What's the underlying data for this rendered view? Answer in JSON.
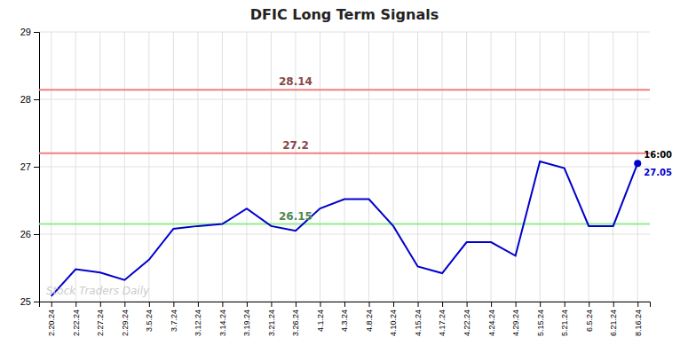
{
  "chart_data": {
    "type": "line",
    "title": "DFIC Long Term Signals",
    "categories": [
      "2.20.24",
      "2.22.24",
      "2.27.24",
      "2.29.24",
      "3.5.24",
      "3.7.24",
      "3.12.24",
      "3.14.24",
      "3.19.24",
      "3.21.24",
      "3.26.24",
      "4.1.24",
      "4.3.24",
      "4.8.24",
      "4.10.24",
      "4.15.24",
      "4.17.24",
      "4.22.24",
      "4.24.24",
      "4.29.24",
      "5.15.24",
      "5.21.24",
      "6.5.24",
      "6.21.24",
      "8.16.24"
    ],
    "values": [
      25.08,
      25.48,
      25.43,
      25.32,
      25.62,
      26.08,
      26.12,
      26.15,
      26.38,
      26.12,
      26.05,
      26.38,
      26.52,
      26.52,
      26.12,
      25.52,
      25.42,
      25.88,
      25.88,
      25.68,
      27.08,
      26.98,
      26.12,
      26.12,
      27.05
    ],
    "color": "#0000cc",
    "reference_lines": [
      {
        "value": 28.14,
        "label": "28.14",
        "color": "#f08080"
      },
      {
        "value": 27.2,
        "label": "27.2",
        "color": "#f08080"
      },
      {
        "value": 26.15,
        "label": "26.15",
        "color": "#90ee90"
      }
    ],
    "last_point": {
      "label": "16:00",
      "value_label": "27.05"
    },
    "watermark": "Stock Traders Daily",
    "ylim": [
      25.0,
      29.0
    ],
    "yticks": [
      25,
      26,
      27,
      28,
      29
    ],
    "grid": true
  }
}
